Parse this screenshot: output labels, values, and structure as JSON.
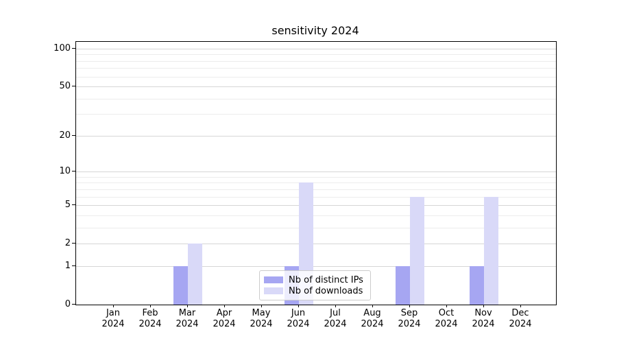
{
  "title": "sensitivity 2024",
  "chart_data": {
    "type": "bar",
    "title": "sensitivity 2024",
    "categories": [
      "Jan 2024",
      "Feb 2024",
      "Mar 2024",
      "Apr 2024",
      "May 2024",
      "Jun 2024",
      "Jul 2024",
      "Aug 2024",
      "Sep 2024",
      "Oct 2024",
      "Nov 2024",
      "Dec 2024"
    ],
    "month_labels": [
      "Jan",
      "Feb",
      "Mar",
      "Apr",
      "May",
      "Jun",
      "Jul",
      "Aug",
      "Sep",
      "Oct",
      "Nov",
      "Dec"
    ],
    "year_label": "2024",
    "series": [
      {
        "name": "Nb of distinct IPs",
        "values": [
          0,
          0,
          1,
          0,
          0,
          1,
          0,
          0,
          1,
          0,
          1,
          0
        ],
        "color": "#a6a6f2"
      },
      {
        "name": "Nb of downloads",
        "values": [
          0,
          0,
          2,
          0,
          0,
          8,
          0,
          0,
          6,
          0,
          6,
          0
        ],
        "color": "#d9d9f8"
      }
    ],
    "yscale": "log1p",
    "ylim": [
      0,
      100
    ],
    "y_major_ticks": [
      0,
      1,
      2,
      5,
      10,
      20,
      50,
      100
    ],
    "y_minor_gridlines": [
      3,
      4,
      6,
      7,
      8,
      9,
      30,
      40,
      60,
      70,
      80,
      90
    ],
    "grid": true,
    "legend_position": "lower center"
  },
  "colors": {
    "grid_major": "#d6d6d6",
    "grid_minor": "#ececec",
    "axis": "#000000",
    "legend_border": "#cccccc",
    "text": "#000000"
  }
}
